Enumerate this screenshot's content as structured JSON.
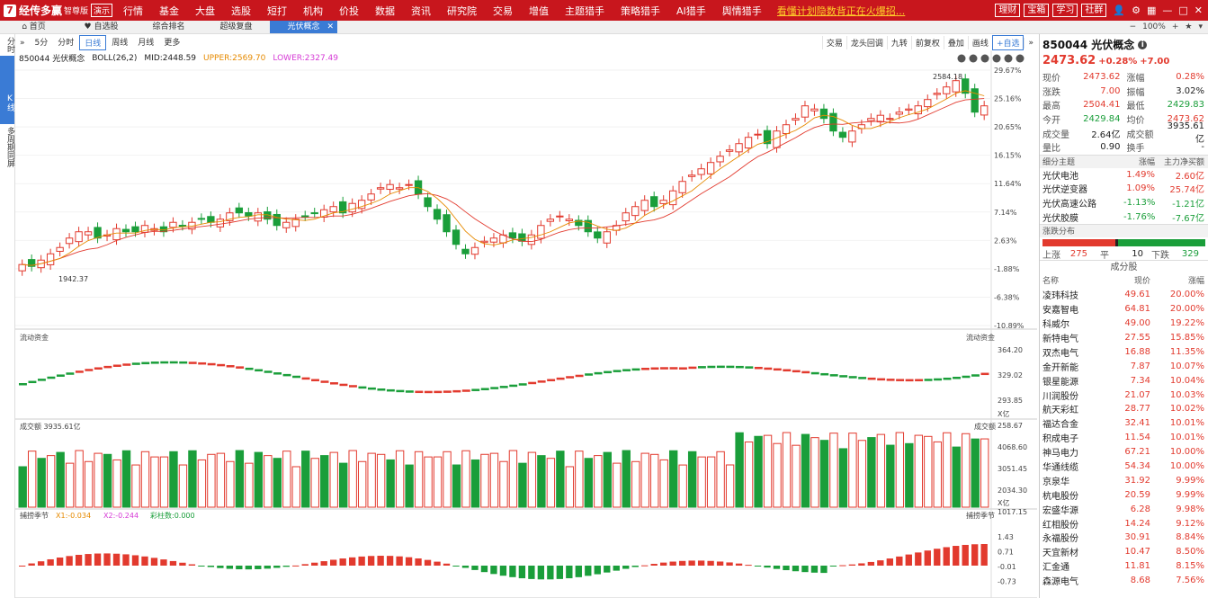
{
  "app": {
    "logo_char": "7",
    "name": "经传多赢",
    "edition": "智尊版",
    "yc_badge": "演示"
  },
  "top_nav": [
    "行情",
    "基金",
    "大盘",
    "选股",
    "短打",
    "机构",
    "价投",
    "数据",
    "资讯",
    "研究院",
    "交易",
    "增值",
    "主题猎手",
    "策略猎手",
    "AI猎手",
    "舆情猎手"
  ],
  "marquee": "看懂计划隐数背正在火爆招...",
  "top_right": {
    "buttons": [
      "理财",
      "宝箱",
      "学习",
      "社群"
    ],
    "icons": [
      "user-icon",
      "gear-icon",
      "grid-icon",
      "minimize-icon",
      "maximize-icon",
      "close-icon"
    ]
  },
  "tabs": [
    "首页",
    "自选股",
    "综合排名",
    "超级复盘",
    "光伏概念"
  ],
  "zoom": "100%",
  "left_strip": [
    "分时",
    "K线",
    "多周期同屏"
  ],
  "periods": [
    "5分",
    "分时",
    "日线",
    "周线",
    "月线",
    "更多"
  ],
  "toolbar2": [
    "交易",
    "龙头回调",
    "九转",
    "前复权",
    "叠加",
    "画线",
    "+自选"
  ],
  "boll": {
    "name": "850044 光伏概念",
    "params": "BOLL(26,2)",
    "mid": "MID:2448.59",
    "upper": "UPPER:2569.70",
    "lower": "LOWER:2327.49"
  },
  "main_axis": [
    "29.67%",
    "25.16%",
    "20.65%",
    "16.15%",
    "11.64%",
    "7.14%",
    "2.63%",
    "-1.88%",
    "-6.38%",
    "-10.89%"
  ],
  "high_label": "2584.18",
  "low_label": "1942.37",
  "flow": {
    "title": "流动资金",
    "title_right": "流动资金",
    "axis": [
      "364.20",
      "329.02",
      "293.85",
      "258.67"
    ],
    "unit": "X亿"
  },
  "vol": {
    "title": "成交额",
    "value": "3935.61亿",
    "title_right": "成交额",
    "axis": [
      "4068.60",
      "3051.45",
      "2034.30",
      "1017.15"
    ],
    "unit": "X亿"
  },
  "ind": {
    "title": "捕捞季节",
    "x1": "X1:-0.034",
    "x2": "X2:-0.244",
    "bar": "彩柱数:0.000",
    "title_right": "捕捞季节",
    "axis": [
      "1.43",
      "0.71",
      "-0.01",
      "-0.73"
    ]
  },
  "colors": {
    "up": "#e23a2e",
    "down": "#1a9e3a",
    "accent": "#3a7bd5",
    "brand": "#c8161d"
  },
  "quote": {
    "code_name": "850044 光伏概念",
    "price": "2473.62",
    "pct": "+0.28%",
    "chg": "+7.00",
    "rows": [
      {
        "k": "现价",
        "v": "2473.62",
        "vc": "red",
        "k2": "涨幅",
        "v2": "0.28%",
        "v2c": "red"
      },
      {
        "k": "涨跌",
        "v": "7.00",
        "vc": "red",
        "k2": "振幅",
        "v2": "3.02%",
        "v2c": "blk"
      },
      {
        "k": "最高",
        "v": "2504.41",
        "vc": "red",
        "k2": "最低",
        "v2": "2429.83",
        "v2c": "grn"
      },
      {
        "k": "今开",
        "v": "2429.84",
        "vc": "grn",
        "k2": "均价",
        "v2": "2473.62",
        "v2c": "red"
      },
      {
        "k": "成交量",
        "v": "2.64亿",
        "vc": "blk",
        "k2": "成交额",
        "v2": "3935.61亿",
        "v2c": "blk"
      },
      {
        "k": "量比",
        "v": "0.90",
        "vc": "blk",
        "k2": "换手",
        "v2": "-",
        "v2c": "blk"
      }
    ]
  },
  "sub_themes": {
    "head": [
      "细分主题",
      "涨幅",
      "主力净买额"
    ],
    "rows": [
      {
        "a": "光伏电池",
        "b": "1.49%",
        "bc": "red",
        "c": "2.60亿",
        "cc": "red"
      },
      {
        "a": "光伏逆变器",
        "b": "1.09%",
        "bc": "red",
        "c": "25.74亿",
        "cc": "red"
      },
      {
        "a": "光伏高速公路",
        "b": "-1.13%",
        "bc": "grn",
        "c": "-1.21亿",
        "cc": "grn"
      },
      {
        "a": "光伏胶膜",
        "b": "-1.76%",
        "bc": "grn",
        "c": "-7.67亿",
        "cc": "grn"
      }
    ]
  },
  "dist": {
    "title": "涨跌分布",
    "up_label": "上涨",
    "up": "275",
    "flat_label": "平",
    "flat": "10",
    "down_label": "下跌",
    "down": "329"
  },
  "constituents": {
    "title": "成分股",
    "head": [
      "名称",
      "现价",
      "涨幅"
    ],
    "rows": [
      [
        "凌玮科技",
        "49.61",
        "20.00%"
      ],
      [
        "安嘉智电",
        "64.81",
        "20.00%"
      ],
      [
        "科威尔",
        "49.00",
        "19.22%"
      ],
      [
        "新特电气",
        "27.55",
        "15.85%"
      ],
      [
        "双杰电气",
        "16.88",
        "11.35%"
      ],
      [
        "金开新能",
        "7.87",
        "10.07%"
      ],
      [
        "银星能源",
        "7.34",
        "10.04%"
      ],
      [
        "川润股份",
        "21.07",
        "10.03%"
      ],
      [
        "航天彩虹",
        "28.77",
        "10.02%"
      ],
      [
        "福达合金",
        "32.41",
        "10.01%"
      ],
      [
        "积成电子",
        "11.54",
        "10.01%"
      ],
      [
        "神马电力",
        "67.21",
        "10.00%"
      ],
      [
        "华通线缆",
        "54.34",
        "10.00%"
      ],
      [
        "京泉华",
        "31.92",
        "9.99%"
      ],
      [
        "杭电股份",
        "20.59",
        "9.99%"
      ],
      [
        "宏盛华源",
        "6.28",
        "9.98%"
      ],
      [
        "红相股份",
        "14.24",
        "9.12%"
      ],
      [
        "永福股份",
        "30.91",
        "8.84%"
      ],
      [
        "天宜新材",
        "10.47",
        "8.50%"
      ],
      [
        "汇金通",
        "11.81",
        "8.15%"
      ],
      [
        "森源电气",
        "8.68",
        "7.56%"
      ]
    ]
  },
  "chart_data": {
    "type": "candlestick",
    "price_range_low": "1942.37",
    "price_range_high": "2584.18",
    "candles_close_pct": [
      -1.2,
      -1.5,
      -0.5,
      0.5,
      1.5,
      3,
      4,
      4,
      3,
      3.5,
      4.5,
      4,
      4,
      5,
      4.5,
      4,
      5.5,
      5,
      5.5,
      6,
      5.5,
      6,
      7,
      7,
      6.5,
      7,
      6,
      5,
      5.5,
      6,
      6.5,
      7,
      7.5,
      8,
      7,
      8.5,
      9,
      10,
      11,
      11.5,
      11,
      11.5,
      10,
      8,
      6,
      4,
      2,
      0.5,
      1.5,
      2.5,
      3,
      3.5,
      3,
      2.5,
      3.5,
      5,
      6,
      6.5,
      6,
      5,
      4,
      3,
      4,
      5,
      7,
      8,
      9,
      8,
      9,
      10.5,
      12,
      13,
      14,
      15,
      16,
      17,
      18,
      19,
      19.5,
      18,
      20,
      21,
      22,
      24,
      23.5,
      22,
      20,
      19,
      20,
      21,
      22,
      22.5,
      22,
      23,
      23.5,
      24,
      25,
      26,
      27,
      28,
      26,
      23,
      24
    ]
  }
}
